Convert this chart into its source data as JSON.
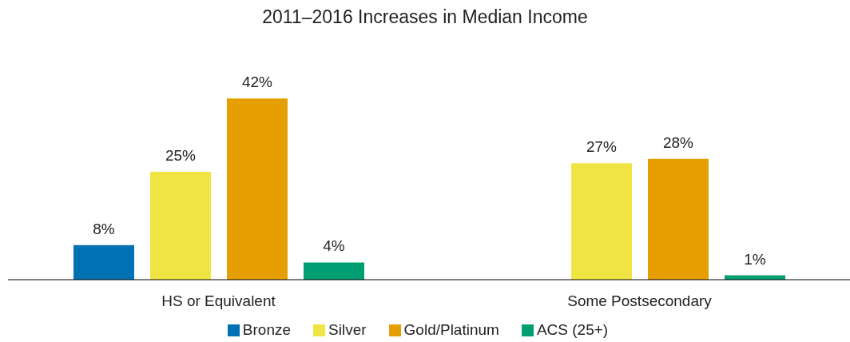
{
  "chart_data": {
    "type": "bar",
    "title": "2011–2016 Increases in Median Income",
    "categories": [
      "HS or Equivalent",
      "Some Postsecondary"
    ],
    "series": [
      {
        "name": "Bronze",
        "color": "#0071b2",
        "values": [
          8,
          null
        ],
        "value_labels": [
          "8%",
          null
        ]
      },
      {
        "name": "Silver",
        "color": "#f0e442",
        "values": [
          25,
          27
        ],
        "value_labels": [
          "25%",
          "27%"
        ]
      },
      {
        "name": "Gold/Platinum",
        "color": "#e69f00",
        "values": [
          42,
          28
        ],
        "value_labels": [
          "42%",
          "28%"
        ]
      },
      {
        "name": "ACS (25+)",
        "color": "#009e73",
        "values": [
          4,
          1
        ],
        "value_labels": [
          "4%",
          "1%"
        ]
      }
    ],
    "legend": "bottom",
    "grid": false
  }
}
